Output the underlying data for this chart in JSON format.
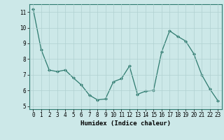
{
  "x": [
    0,
    1,
    2,
    3,
    4,
    5,
    6,
    7,
    8,
    9,
    10,
    11,
    12,
    13,
    14,
    15,
    16,
    17,
    18,
    19,
    20,
    21,
    22,
    23
  ],
  "y": [
    11.2,
    8.6,
    7.3,
    7.2,
    7.3,
    6.8,
    6.35,
    5.7,
    5.4,
    5.45,
    6.55,
    6.75,
    7.55,
    5.75,
    5.95,
    6.0,
    8.45,
    9.8,
    9.45,
    9.15,
    8.35,
    7.0,
    6.1,
    5.35
  ],
  "xlabel": "Humidex (Indice chaleur)",
  "ylim": [
    4.8,
    11.5
  ],
  "xlim": [
    -0.5,
    23.5
  ],
  "yticks": [
    5,
    6,
    7,
    8,
    9,
    10,
    11
  ],
  "xticks": [
    0,
    1,
    2,
    3,
    4,
    5,
    6,
    7,
    8,
    9,
    10,
    11,
    12,
    13,
    14,
    15,
    16,
    17,
    18,
    19,
    20,
    21,
    22,
    23
  ],
  "xtick_labels": [
    "0",
    "1",
    "2",
    "3",
    "4",
    "5",
    "6",
    "7",
    "8",
    "9",
    "10",
    "11",
    "12",
    "13",
    "14",
    "15",
    "16",
    "17",
    "18",
    "19",
    "20",
    "21",
    "22",
    "23"
  ],
  "line_color": "#2d7a6e",
  "marker_color": "#2d7a6e",
  "bg_color": "#cce8e8",
  "grid_color": "#b0d0d0",
  "label_fontsize": 6.5,
  "tick_fontsize": 5.5
}
